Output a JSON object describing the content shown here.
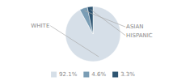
{
  "chart_data": {
    "type": "pie",
    "categories": [
      "WHITE",
      "ASIAN",
      "HISPANIC"
    ],
    "values": [
      92.1,
      4.6,
      3.3
    ],
    "value_labels": [
      "92.1%",
      "4.6%",
      "3.3%"
    ],
    "colors": [
      "#d6dfe8",
      "#7a9db5",
      "#2e5572"
    ],
    "legend": "bottom"
  }
}
